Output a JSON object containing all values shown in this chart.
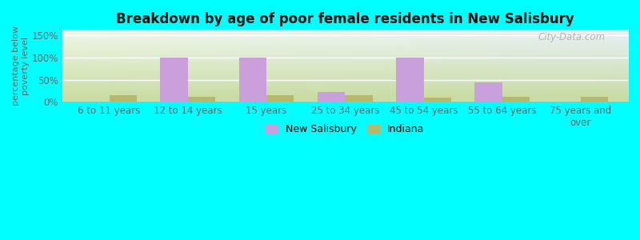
{
  "title": "Breakdown by age of poor female residents in New Salisbury",
  "ylabel": "percentage below\npoverty level",
  "categories": [
    "6 to 11 years",
    "12 to 14 years",
    "15 years",
    "25 to 34 years",
    "45 to 54 years",
    "55 to 64 years",
    "75 years and\nover"
  ],
  "new_salisbury": [
    0,
    100,
    100,
    22,
    100,
    43,
    0
  ],
  "indiana": [
    15,
    12,
    14,
    15,
    10,
    12,
    12
  ],
  "ns_color": "#c9a0dc",
  "indiana_color": "#b8b86a",
  "ylim": [
    0,
    162
  ],
  "yticks": [
    0,
    50,
    100,
    150
  ],
  "ytick_labels": [
    "0%",
    "50%",
    "100%",
    "150%"
  ],
  "bg_gradient_bottom": "#c8dba0",
  "bg_gradient_top": "#f0f8e8",
  "bg_gradient_right": "#e8f0f8",
  "outer_bg": "#00ffff",
  "bar_width": 0.35,
  "legend_labels": [
    "New Salisbury",
    "Indiana"
  ],
  "watermark": "City-Data.com",
  "title_fontsize": 12,
  "tick_fontsize": 8.5,
  "ylabel_fontsize": 8
}
